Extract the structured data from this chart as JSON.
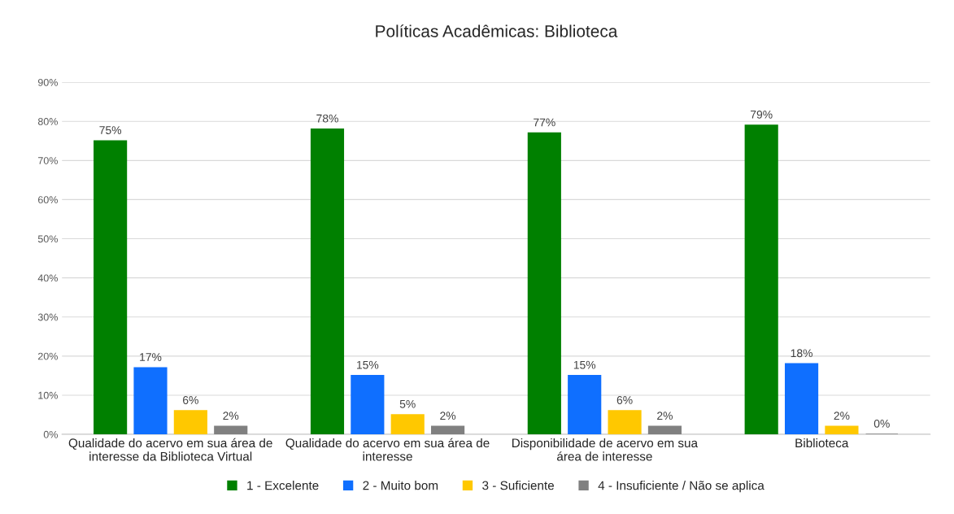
{
  "chart_data": {
    "type": "bar",
    "title": "Políticas Acadêmicas: Biblioteca",
    "categories": [
      "Qualidade do acervo em sua área de\ninteresse da Biblioteca Virtual",
      "Qualidade do acervo em sua área de\ninteresse",
      "Disponibilidade de acervo em sua\nárea de interesse",
      "Biblioteca"
    ],
    "series": [
      {
        "name": "1 - Excelente",
        "color": "#008000",
        "values": [
          75,
          78,
          77,
          79
        ],
        "value_labels": [
          "75%",
          "78%",
          "77%",
          "79%"
        ]
      },
      {
        "name": "2 - Muito bom",
        "color": "#0f6fff",
        "values": [
          17,
          15,
          15,
          18
        ],
        "value_labels": [
          "17%",
          "15%",
          "15%",
          "18%"
        ]
      },
      {
        "name": "3 - Suficiente",
        "color": "#ffc800",
        "values": [
          6,
          5,
          6,
          2
        ],
        "value_labels": [
          "6%",
          "5%",
          "6%",
          "2%"
        ]
      },
      {
        "name": "4 - Insuficiente / Não se aplica",
        "color": "#808080",
        "values": [
          2,
          2,
          2,
          0
        ],
        "value_labels": [
          "2%",
          "2%",
          "2%",
          "0%"
        ]
      }
    ],
    "ylim": [
      0,
      90
    ],
    "yticks": [
      {
        "value": 0,
        "label": "0%"
      },
      {
        "value": 10,
        "label": "10%"
      },
      {
        "value": 20,
        "label": "20%"
      },
      {
        "value": 30,
        "label": "30%"
      },
      {
        "value": 40,
        "label": "40%"
      },
      {
        "value": 50,
        "label": "50%"
      },
      {
        "value": 60,
        "label": "60%"
      },
      {
        "value": 70,
        "label": "70%"
      },
      {
        "value": 80,
        "label": "80%"
      },
      {
        "value": 90,
        "label": "90%"
      }
    ],
    "grid": "y",
    "legend": "bottom"
  }
}
